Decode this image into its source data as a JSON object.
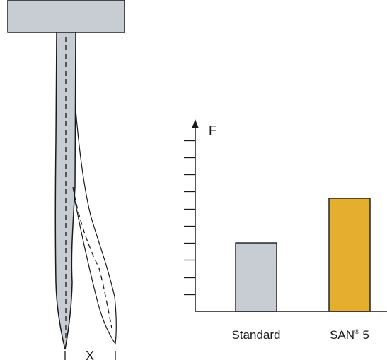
{
  "diagram": {
    "displacement_label": "X"
  },
  "chart_data": {
    "type": "bar",
    "ylabel": "F",
    "categories": [
      "Standard",
      "SAN® 5"
    ],
    "values": [
      2.0,
      3.3
    ],
    "ylim": [
      0,
      5.3
    ],
    "y_tick_step": 0.5,
    "colors": [
      "#c8cdd3",
      "#e5ae2f"
    ],
    "grid": false
  }
}
